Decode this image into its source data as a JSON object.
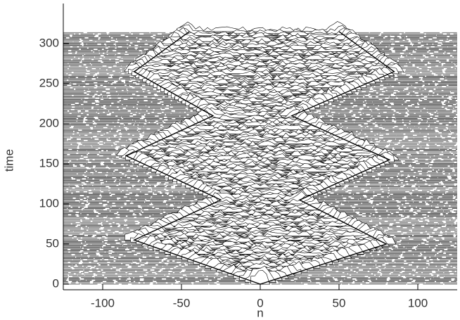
{
  "chart_data": {
    "type": "waterfall",
    "xlabel": "n",
    "ylabel": "time",
    "xlim": [
      -125,
      125
    ],
    "ylim": [
      -7,
      350
    ],
    "xticks": [
      -100,
      -50,
      0,
      50,
      100
    ],
    "yticks": [
      0,
      50,
      100,
      150,
      200,
      250,
      300
    ],
    "color": "#000000",
    "series": [
      {
        "x": [
          0,
          -80,
          -25,
          -85,
          -30,
          -80,
          -45
        ],
        "values": [
          0,
          55,
          105,
          160,
          210,
          265,
          315
        ]
      },
      {
        "x": [
          0,
          80,
          25,
          82,
          20,
          85,
          50
        ],
        "values": [
          0,
          50,
          105,
          155,
          210,
          265,
          315
        ]
      }
    ]
  }
}
